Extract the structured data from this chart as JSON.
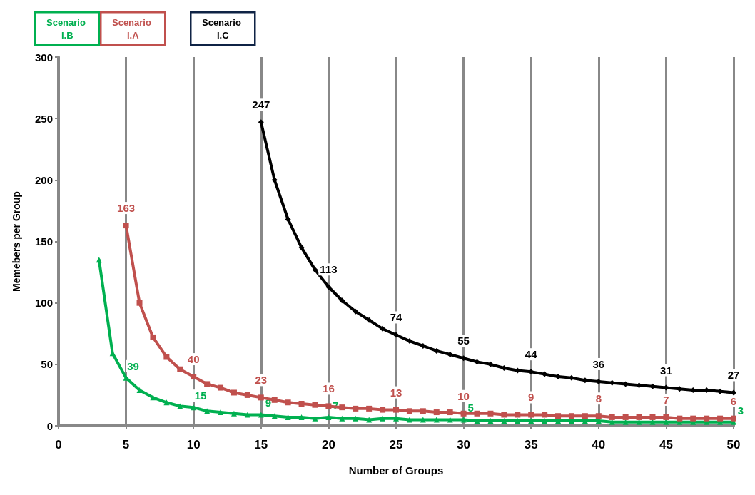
{
  "chart_data": {
    "type": "line",
    "xlabel": "Number of Groups",
    "ylabel": "Memebers per Group",
    "xlim": [
      0,
      50
    ],
    "xticks": [
      0,
      5,
      10,
      15,
      20,
      25,
      30,
      35,
      40,
      45,
      50
    ],
    "ylim": [
      0,
      300
    ],
    "yticks": [
      0,
      50,
      100,
      150,
      200,
      250,
      300
    ],
    "grid": "x",
    "legend": "top left",
    "line_style": "solid",
    "series": [
      {
        "name": "Scenario I.B",
        "color": "#00b050",
        "marker": "triangle",
        "x": [
          3,
          4,
          5,
          6,
          7,
          8,
          9,
          10,
          11,
          12,
          13,
          14,
          15,
          16,
          17,
          18,
          19,
          20,
          21,
          22,
          23,
          24,
          25,
          26,
          27,
          28,
          29,
          30,
          31,
          32,
          33,
          34,
          35,
          36,
          37,
          38,
          39,
          40,
          41,
          42,
          43,
          44,
          45,
          46,
          47,
          48,
          49,
          50
        ],
        "values": [
          135,
          59,
          39,
          29,
          23,
          19,
          16,
          15,
          12,
          11,
          10,
          9,
          9,
          8,
          7,
          7,
          6,
          7,
          6,
          6,
          5,
          6,
          6,
          5,
          5,
          5,
          5,
          5,
          4,
          4,
          4,
          4,
          4,
          4,
          4,
          4,
          4,
          4,
          3,
          3,
          3,
          3,
          3,
          3,
          3,
          3,
          3,
          3
        ],
        "value_labels": [
          null,
          null,
          "39",
          null,
          null,
          null,
          null,
          "15",
          null,
          null,
          null,
          null,
          "9",
          null,
          null,
          null,
          null,
          "7",
          null,
          null,
          null,
          null,
          null,
          null,
          null,
          null,
          null,
          "5",
          null,
          null,
          null,
          null,
          null,
          null,
          null,
          null,
          null,
          null,
          null,
          null,
          null,
          null,
          null,
          null,
          null,
          null,
          null,
          "3"
        ]
      },
      {
        "name": "Scenario I.A",
        "color": "#c0504d",
        "marker": "square",
        "x": [
          5,
          6,
          7,
          8,
          9,
          10,
          11,
          12,
          13,
          14,
          15,
          16,
          17,
          18,
          19,
          20,
          21,
          22,
          23,
          24,
          25,
          26,
          27,
          28,
          29,
          30,
          31,
          32,
          33,
          34,
          35,
          36,
          37,
          38,
          39,
          40,
          41,
          42,
          43,
          44,
          45,
          46,
          47,
          48,
          49,
          50
        ],
        "values": [
          163,
          100,
          72,
          56,
          46,
          40,
          34,
          31,
          27,
          25,
          23,
          21,
          19,
          18,
          17,
          16,
          15,
          14,
          14,
          13,
          13,
          12,
          12,
          11,
          11,
          10,
          10,
          10,
          9,
          9,
          9,
          9,
          8,
          8,
          8,
          8,
          7,
          7,
          7,
          7,
          7,
          6,
          6,
          6,
          6,
          6
        ],
        "value_labels": [
          "163",
          null,
          null,
          null,
          null,
          "40",
          null,
          null,
          null,
          null,
          "23",
          null,
          null,
          null,
          null,
          "16",
          null,
          null,
          null,
          null,
          "13",
          null,
          null,
          null,
          null,
          "10",
          null,
          null,
          null,
          null,
          "9",
          null,
          null,
          null,
          null,
          "8",
          null,
          null,
          null,
          null,
          "7",
          null,
          null,
          null,
          null,
          "6"
        ]
      },
      {
        "name": "Scenario I.C",
        "color": "#000000",
        "marker": "diamond",
        "x": [
          15,
          16,
          17,
          18,
          19,
          20,
          21,
          22,
          23,
          24,
          25,
          26,
          27,
          28,
          29,
          30,
          31,
          32,
          33,
          34,
          35,
          36,
          37,
          38,
          39,
          40,
          41,
          42,
          43,
          44,
          45,
          46,
          47,
          48,
          49,
          50
        ],
        "values": [
          247,
          200,
          168,
          145,
          127,
          113,
          102,
          93,
          86,
          79,
          74,
          69,
          65,
          61,
          58,
          55,
          52,
          50,
          47,
          45,
          44,
          42,
          40,
          39,
          37,
          36,
          35,
          34,
          33,
          32,
          31,
          30,
          29,
          29,
          28,
          27
        ],
        "value_labels": [
          "247",
          null,
          null,
          null,
          null,
          "113",
          null,
          null,
          null,
          null,
          "74",
          null,
          null,
          null,
          null,
          "55",
          null,
          null,
          null,
          null,
          "44",
          null,
          null,
          null,
          null,
          "36",
          null,
          null,
          null,
          null,
          "31",
          null,
          null,
          null,
          null,
          "27"
        ]
      }
    ]
  }
}
